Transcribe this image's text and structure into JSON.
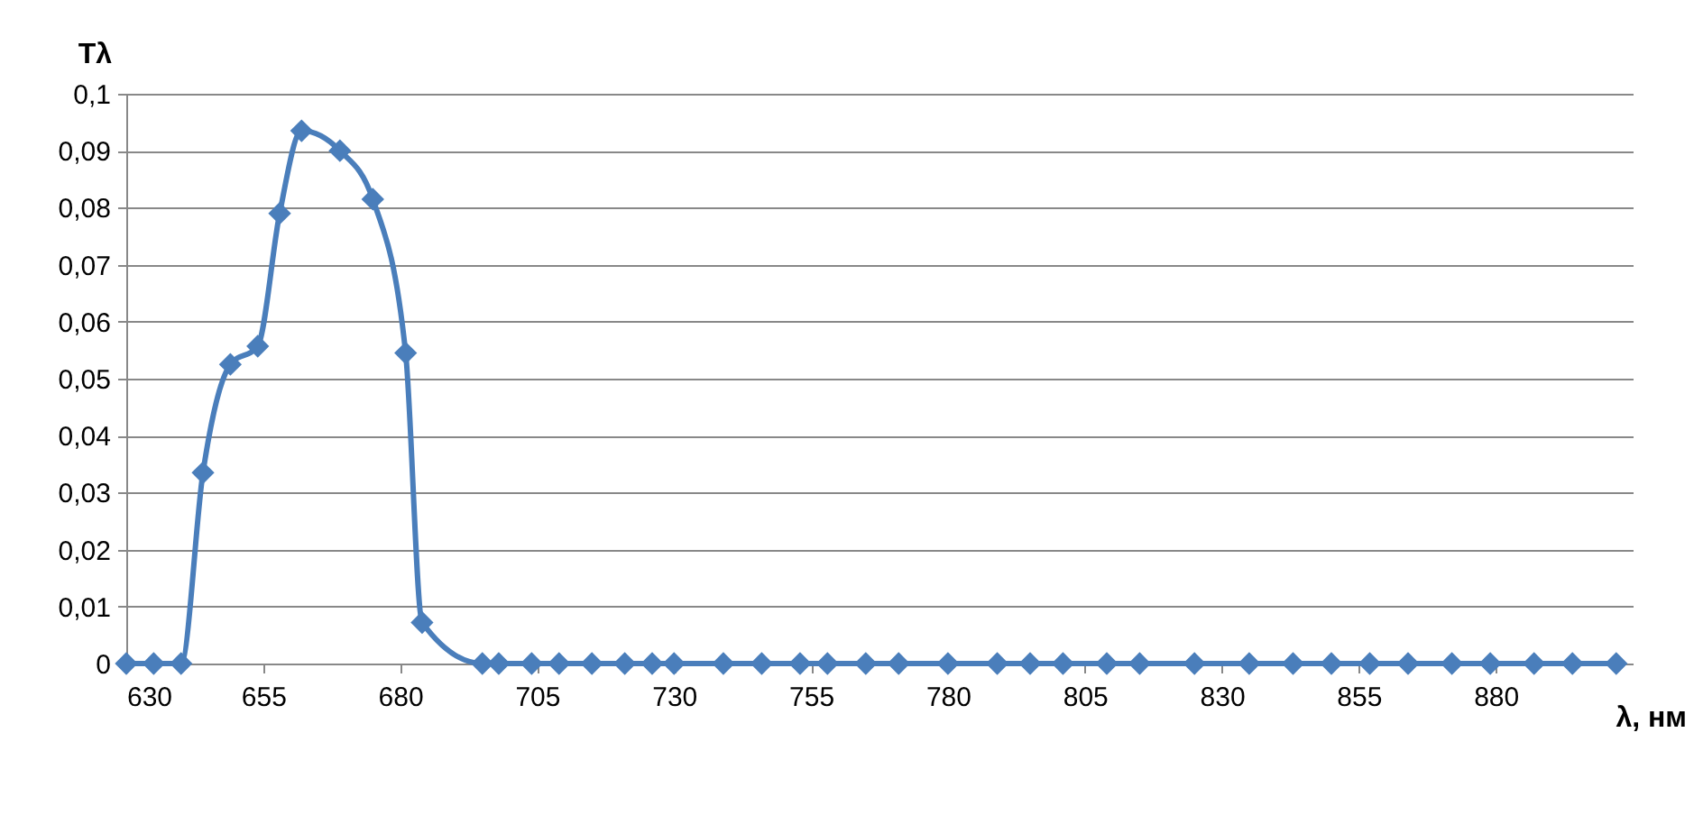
{
  "chart_data": {
    "type": "line",
    "xlabel": "λ, нм",
    "ylabel": "Tλ",
    "x": [
      630,
      635,
      640,
      644,
      649,
      654,
      658,
      662,
      669,
      675,
      681,
      684,
      695,
      698,
      704,
      709,
      715,
      721,
      726,
      730,
      739,
      746,
      753,
      758,
      765,
      771,
      780,
      789,
      795,
      801,
      809,
      815,
      825,
      835,
      843,
      850,
      857,
      864,
      872,
      879,
      887,
      894,
      902
    ],
    "series": [
      {
        "color": "#4a7ebb",
        "values": [
          0,
          0,
          0,
          0.0335,
          0.0525,
          0.0557,
          0.079,
          0.0935,
          0.09,
          0.0815,
          0.0545,
          0.0072,
          0,
          0,
          0,
          0,
          0,
          0,
          0,
          0,
          0,
          0,
          0,
          0,
          0,
          0,
          0,
          0,
          0,
          0,
          0,
          0,
          0,
          0,
          0,
          0,
          0,
          0,
          0,
          0,
          0,
          0,
          0
        ]
      }
    ],
    "xlim": [
      630,
      905
    ],
    "xticks": [
      630,
      655,
      680,
      705,
      730,
      755,
      780,
      805,
      830,
      855,
      880
    ],
    "ylim": [
      0,
      0.1
    ],
    "yticks": [
      {
        "value": 0,
        "label": "0"
      },
      {
        "value": 0.01,
        "label": "0,01"
      },
      {
        "value": 0.02,
        "label": "0,02"
      },
      {
        "value": 0.03,
        "label": "0,03"
      },
      {
        "value": 0.04,
        "label": "0,04"
      },
      {
        "value": 0.05,
        "label": "0,05"
      },
      {
        "value": 0.06,
        "label": "0,06"
      },
      {
        "value": 0.07,
        "label": "0,07"
      },
      {
        "value": 0.08,
        "label": "0,08"
      },
      {
        "value": 0.09,
        "label": "0,09"
      },
      {
        "value": 0.1,
        "label": "0,1"
      }
    ],
    "grid": "y",
    "marker": "diamond",
    "line_style": "solid"
  }
}
